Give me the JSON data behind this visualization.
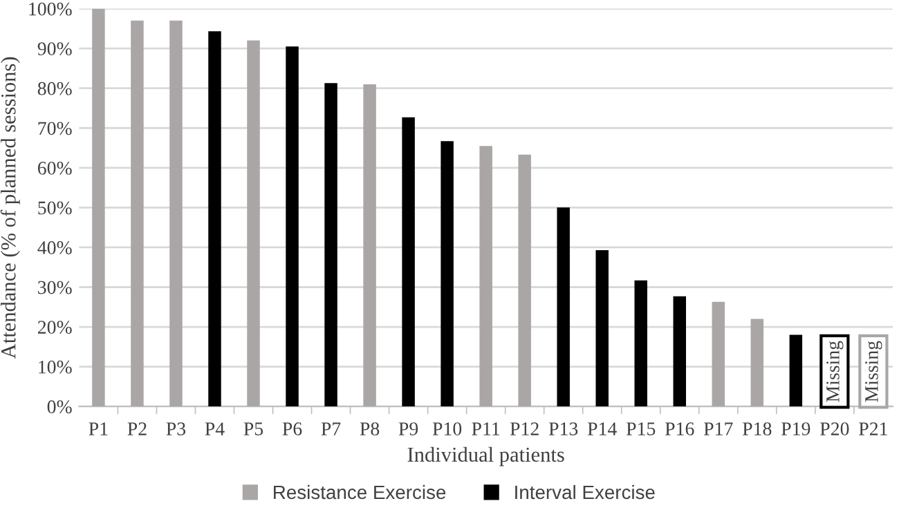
{
  "chart_data": {
    "type": "bar",
    "xlabel": "Individual patients",
    "ylabel": "Attendance (% of planned sessions)",
    "categories": [
      "P1",
      "P2",
      "P3",
      "P4",
      "P5",
      "P6",
      "P7",
      "P8",
      "P9",
      "P10",
      "P11",
      "P12",
      "P13",
      "P14",
      "P15",
      "P16",
      "P17",
      "P18",
      "P19",
      "P20",
      "P21"
    ],
    "series": [
      {
        "name": "Resistance Exercise",
        "color": "#aaa6a6",
        "values": [
          100,
          97,
          97,
          null,
          92,
          null,
          null,
          81,
          null,
          null,
          65.5,
          63.3,
          null,
          null,
          null,
          null,
          26.3,
          22,
          null,
          null,
          null
        ]
      },
      {
        "name": "Interval Exercise",
        "color": "#000000",
        "values": [
          null,
          null,
          null,
          94.3,
          null,
          90.5,
          81.3,
          null,
          72.7,
          66.7,
          null,
          null,
          50,
          39.3,
          31.7,
          27.7,
          null,
          null,
          18,
          null,
          null
        ]
      }
    ],
    "annotations": [
      "Missing",
      "Missing"
    ],
    "ylim": [
      0,
      100
    ],
    "yticks": [
      {
        "value": 0,
        "label": "0%"
      },
      {
        "value": 10,
        "label": "10%"
      },
      {
        "value": 20,
        "label": "20%"
      },
      {
        "value": 30,
        "label": "30%"
      },
      {
        "value": 40,
        "label": "40%"
      },
      {
        "value": 50,
        "label": "50%"
      },
      {
        "value": 60,
        "label": "60%"
      },
      {
        "value": 70,
        "label": "70%"
      },
      {
        "value": 80,
        "label": "80%"
      },
      {
        "value": 90,
        "label": "90%"
      },
      {
        "value": 100,
        "label": "100%"
      }
    ],
    "grid": "y",
    "legend": "bottom"
  }
}
